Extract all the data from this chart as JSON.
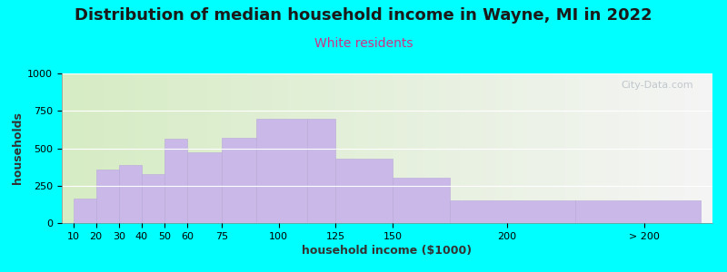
{
  "title": "Distribution of median household income in Wayne, MI in 2022",
  "subtitle": "White residents",
  "xlabel": "household income ($1000)",
  "ylabel": "households",
  "bar_color": "#c9b8e8",
  "bar_edgecolor": "#b8a8d8",
  "background_color": "#00FFFF",
  "plot_bg_left": "#d6ecc4",
  "plot_bg_right": "#f5f5f5",
  "ylim": [
    0,
    1000
  ],
  "yticks": [
    0,
    250,
    500,
    750,
    1000
  ],
  "bar_positions": [
    10,
    20,
    30,
    40,
    50,
    60,
    75,
    90,
    112.5,
    125,
    150,
    175,
    230
  ],
  "bar_widths": [
    10,
    10,
    10,
    10,
    10,
    15,
    15,
    22.5,
    12.5,
    25,
    25,
    55,
    55
  ],
  "bar_heights": [
    165,
    360,
    385,
    325,
    565,
    470,
    570,
    700,
    700,
    430,
    305,
    150,
    150
  ],
  "xlim": [
    5,
    290
  ],
  "xtick_positions": [
    10,
    20,
    30,
    40,
    50,
    60,
    75,
    100,
    125,
    150,
    200,
    260
  ],
  "xtick_labels": [
    "10",
    "20",
    "30",
    "40",
    "50",
    "60",
    "75",
    "100",
    "125",
    "150",
    "200",
    "> 200"
  ],
  "watermark": "City-Data.com",
  "title_fontsize": 13,
  "subtitle_fontsize": 10,
  "subtitle_color": "#cc3388",
  "axis_label_fontsize": 9,
  "tick_fontsize": 8
}
